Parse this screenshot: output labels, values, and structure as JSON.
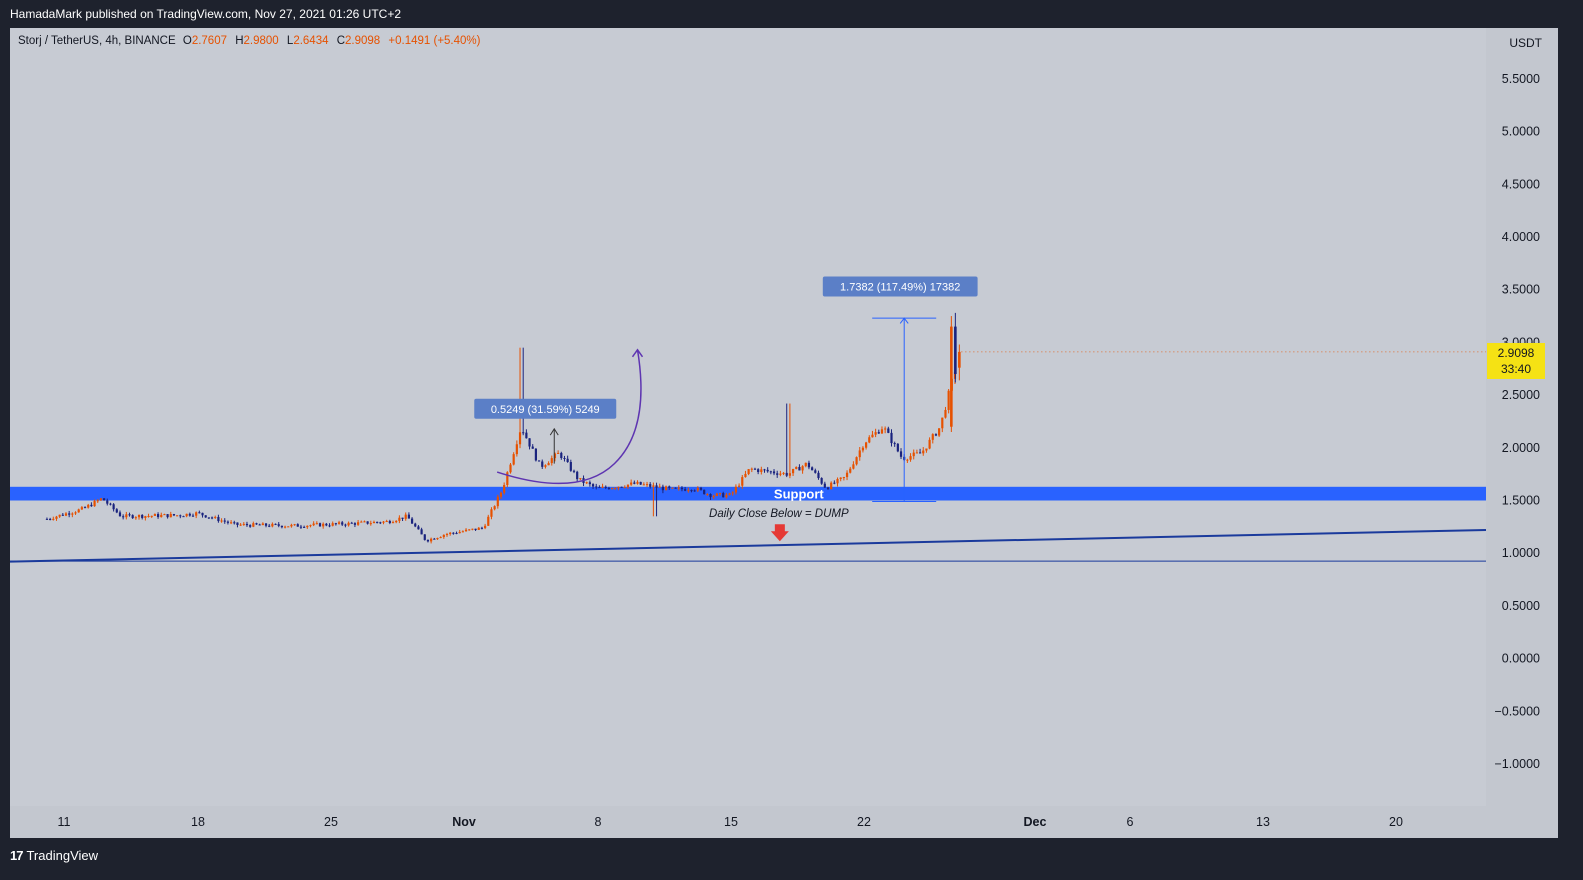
{
  "header": {
    "publish_line": "HamadaMark published on TradingView.com, Nov 27, 2021 01:26 UTC+2"
  },
  "footer": {
    "brand_logo": "17",
    "brand_name": "TradingView"
  },
  "legend": {
    "symbol": "Storj / TetherUS, 4h, BINANCE",
    "open_label": "O",
    "open": "2.7607",
    "high_label": "H",
    "high": "2.9800",
    "low_label": "L",
    "low": "2.6434",
    "close_label": "C",
    "close": "2.9098",
    "change": "+0.1491 (+5.40%)"
  },
  "price_axis": {
    "currency": "USDT",
    "labels": [
      "5.5000",
      "5.0000",
      "4.5000",
      "4.0000",
      "3.5000",
      "3.0000",
      "2.5000",
      "2.0000",
      "1.5000",
      "1.0000",
      "0.5000",
      "0.0000",
      "−0.5000",
      "−1.0000"
    ]
  },
  "time_axis": {
    "labels": [
      "11",
      "18",
      "25",
      "Nov",
      "8",
      "15",
      "22",
      "Dec",
      "6",
      "13",
      "20"
    ],
    "bold": [
      "Nov",
      "Dec"
    ]
  },
  "current_price": {
    "value": "2.9098",
    "countdown": "33:40"
  },
  "annotations": {
    "support_label": "Support",
    "dump_text": "Daily Close Below = DUMP",
    "measure_1": "0.5249 (31.59%) 5249",
    "measure_2": "1.7382 (117.49%) 17382"
  },
  "colors": {
    "background": "#1e222d",
    "chart_bg": "#c7cbd3",
    "up_candle": "#e65100",
    "down_candle": "#1a237e",
    "support_zone": "#2962ff",
    "trend_line": "#1a3a9c",
    "arrow": "#e53935",
    "curve": "#5e35b1",
    "measure": "#2962ff",
    "price_badge": "#f5e214"
  },
  "chart_data": {
    "type": "candlestick",
    "title": "Storj / TetherUS, 4h, BINANCE",
    "ylim": [
      -1.5,
      5.8
    ],
    "x_ticks": [
      "11",
      "18",
      "25",
      "Nov",
      "8",
      "15",
      "22",
      "Dec",
      "6",
      "13",
      "20"
    ],
    "anchors": [
      {
        "x": "Oct 10",
        "y": 1.32
      },
      {
        "x": "Oct 12",
        "y": 1.42
      },
      {
        "x": "Oct 13",
        "y": 1.52
      },
      {
        "x": "Oct 14",
        "y": 1.35
      },
      {
        "x": "Oct 17",
        "y": 1.36
      },
      {
        "x": "Oct 18",
        "y": 1.38
      },
      {
        "x": "Oct 20",
        "y": 1.27
      },
      {
        "x": "Oct 23",
        "y": 1.26
      },
      {
        "x": "Oct 26",
        "y": 1.28
      },
      {
        "x": "Oct 28",
        "y": 1.3
      },
      {
        "x": "Oct 29",
        "y": 1.35
      },
      {
        "x": "Oct 30",
        "y": 1.12
      },
      {
        "x": "Oct 31",
        "y": 1.18
      },
      {
        "x": "Nov 2",
        "y": 1.24
      },
      {
        "x": "Nov 3",
        "y": 1.6
      },
      {
        "x": "Nov 4",
        "y": 2.2
      },
      {
        "x": "Nov 5",
        "y": 1.82
      },
      {
        "x": "Nov 6",
        "y": 1.95
      },
      {
        "x": "Nov 7",
        "y": 1.7
      },
      {
        "x": "Nov 8",
        "y": 1.61
      },
      {
        "x": "Nov 10",
        "y": 1.66
      },
      {
        "x": "Nov 12",
        "y": 1.6
      },
      {
        "x": "Nov 13",
        "y": 1.62
      },
      {
        "x": "Nov 14",
        "y": 1.55
      },
      {
        "x": "Nov 15",
        "y": 1.55
      },
      {
        "x": "Nov 16",
        "y": 1.8
      },
      {
        "x": "Nov 18",
        "y": 1.75
      },
      {
        "x": "Nov 19",
        "y": 1.85
      },
      {
        "x": "Nov 20",
        "y": 1.62
      },
      {
        "x": "Nov 21",
        "y": 1.72
      },
      {
        "x": "Nov 22",
        "y": 2.05
      },
      {
        "x": "Nov 23",
        "y": 2.2
      },
      {
        "x": "Nov 24",
        "y": 1.9
      },
      {
        "x": "Nov 25",
        "y": 1.95
      },
      {
        "x": "Nov 26",
        "y": 2.2
      },
      {
        "x": "Nov 27",
        "y": 2.9
      }
    ],
    "support_zone": [
      1.5,
      1.63
    ],
    "last_close": 2.9098
  }
}
